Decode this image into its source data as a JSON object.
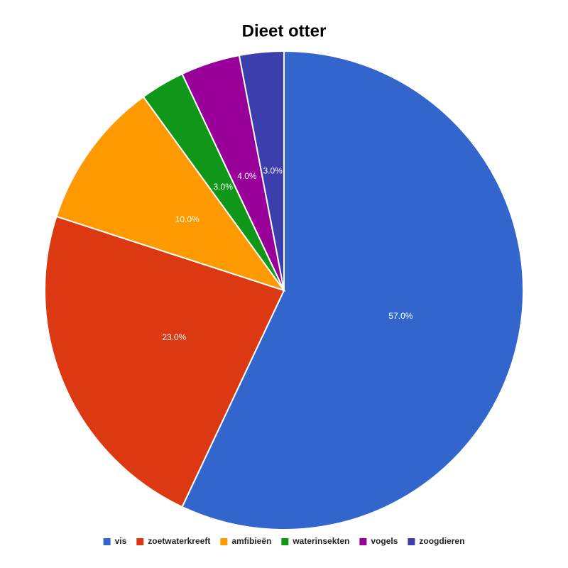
{
  "chart_data": {
    "type": "pie",
    "title": "Dieet otter",
    "categories": [
      "vis",
      "zoetwaterkreeft",
      "amfibieën",
      "waterinsekten",
      "vogels",
      "zoogdieren"
    ],
    "values": [
      57,
      23,
      10,
      3,
      4,
      3
    ],
    "value_labels": [
      "57.0%",
      "23.0%",
      "10.0%",
      "3.0%",
      "4.0%",
      "3.0%"
    ],
    "colors": [
      "#3366cc",
      "#dc3912",
      "#ff9900",
      "#109618",
      "#990099",
      "#3b3eac"
    ],
    "legend": "bottom"
  }
}
